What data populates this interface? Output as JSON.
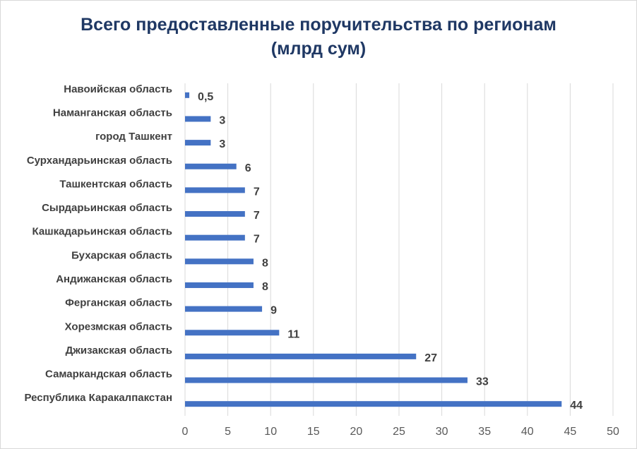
{
  "chart_data": {
    "type": "bar",
    "orientation": "horizontal",
    "title_line1": "Всего предоставленные поручительства по регионам",
    "title_line2": "(млрд сум)",
    "categories": [
      "Навоийская область",
      "Наманганская область",
      "город Ташкент",
      "Сурхандарьинская область",
      "Ташкентская область",
      "Сырдарьинская область",
      "Кашкадарьинская область",
      "Бухарская область",
      "Андижанская область",
      "Ферганская область",
      "Хорезмская область",
      "Джизакская область",
      "Самаркандская  область",
      "Республика Каракалпакстан"
    ],
    "values": [
      0.5,
      3,
      3,
      6,
      7,
      7,
      7,
      8,
      8,
      9,
      11,
      27,
      33,
      44
    ],
    "data_labels": [
      "0,5",
      "3",
      "3",
      "6",
      "7",
      "7",
      "7",
      "8",
      "8",
      "9",
      "11",
      "27",
      "33",
      "44"
    ],
    "xlim": [
      0,
      50
    ],
    "x_ticks": [
      "0",
      "5",
      "10",
      "15",
      "20",
      "25",
      "30",
      "35",
      "40",
      "45",
      "50"
    ],
    "grid": "vertical",
    "bar_color": "#4472c4",
    "title_color": "#1f3864"
  }
}
